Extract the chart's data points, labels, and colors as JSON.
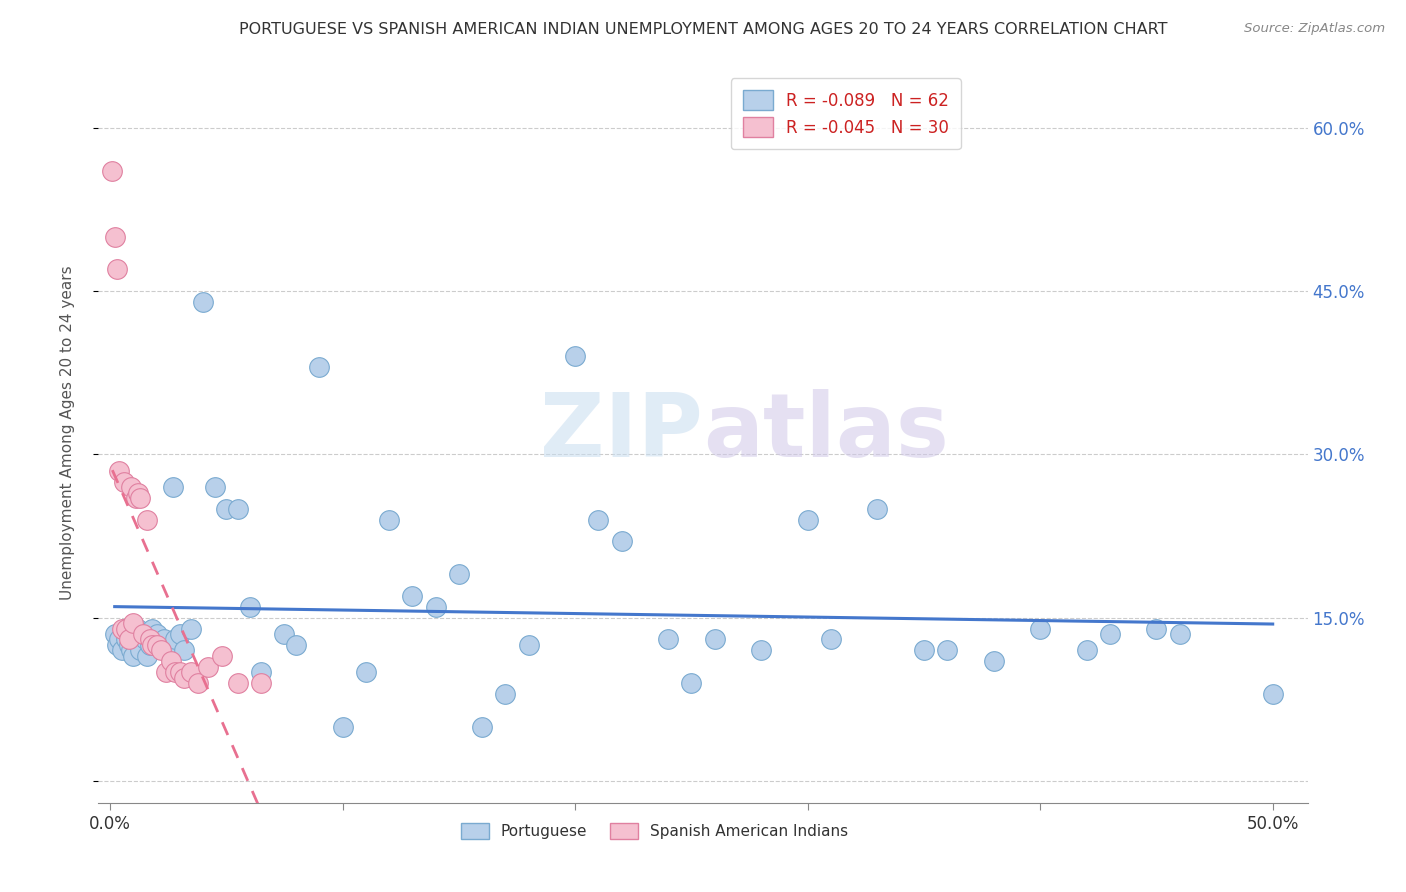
{
  "title": "PORTUGUESE VS SPANISH AMERICAN INDIAN UNEMPLOYMENT AMONG AGES 20 TO 24 YEARS CORRELATION CHART",
  "source": "Source: ZipAtlas.com",
  "ylabel": "Unemployment Among Ages 20 to 24 years",
  "xlim": [
    -0.005,
    0.515
  ],
  "ylim": [
    -0.02,
    0.66
  ],
  "xtick_positions": [
    0.0,
    0.1,
    0.2,
    0.3,
    0.4,
    0.5
  ],
  "xtick_labels_show": [
    "0.0%",
    "",
    "",
    "",
    "",
    "50.0%"
  ],
  "yticks_right": [
    0.0,
    0.15,
    0.3,
    0.45,
    0.6
  ],
  "yticklabels_right": [
    "",
    "15.0%",
    "30.0%",
    "45.0%",
    "60.0%"
  ],
  "portuguese_R": -0.089,
  "portuguese_N": 62,
  "spanish_R": -0.045,
  "spanish_N": 30,
  "portuguese_color": "#b8d0ea",
  "portuguese_edge": "#7aaad0",
  "spanish_color": "#f5c0d0",
  "spanish_edge": "#e080a0",
  "trendline_portuguese_color": "#4477cc",
  "trendline_spanish_color": "#e87090",
  "portuguese_x": [
    0.002,
    0.003,
    0.004,
    0.005,
    0.006,
    0.007,
    0.008,
    0.009,
    0.01,
    0.011,
    0.012,
    0.013,
    0.015,
    0.016,
    0.017,
    0.018,
    0.02,
    0.022,
    0.023,
    0.025,
    0.027,
    0.028,
    0.03,
    0.032,
    0.035,
    0.04,
    0.045,
    0.05,
    0.055,
    0.06,
    0.065,
    0.075,
    0.08,
    0.09,
    0.1,
    0.11,
    0.12,
    0.13,
    0.14,
    0.15,
    0.16,
    0.17,
    0.18,
    0.2,
    0.21,
    0.22,
    0.24,
    0.25,
    0.26,
    0.28,
    0.3,
    0.31,
    0.33,
    0.35,
    0.36,
    0.38,
    0.4,
    0.42,
    0.43,
    0.45,
    0.46,
    0.5
  ],
  "portuguese_y": [
    0.135,
    0.125,
    0.13,
    0.12,
    0.14,
    0.13,
    0.125,
    0.12,
    0.115,
    0.13,
    0.14,
    0.12,
    0.13,
    0.115,
    0.125,
    0.14,
    0.135,
    0.125,
    0.13,
    0.12,
    0.27,
    0.13,
    0.135,
    0.12,
    0.14,
    0.44,
    0.27,
    0.25,
    0.25,
    0.16,
    0.1,
    0.135,
    0.125,
    0.38,
    0.05,
    0.1,
    0.24,
    0.17,
    0.16,
    0.19,
    0.05,
    0.08,
    0.125,
    0.39,
    0.24,
    0.22,
    0.13,
    0.09,
    0.13,
    0.12,
    0.24,
    0.13,
    0.25,
    0.12,
    0.12,
    0.11,
    0.14,
    0.12,
    0.135,
    0.14,
    0.135,
    0.08
  ],
  "spanish_x": [
    0.001,
    0.002,
    0.003,
    0.004,
    0.005,
    0.006,
    0.007,
    0.008,
    0.009,
    0.01,
    0.011,
    0.012,
    0.013,
    0.014,
    0.016,
    0.017,
    0.018,
    0.02,
    0.022,
    0.024,
    0.026,
    0.028,
    0.03,
    0.032,
    0.035,
    0.038,
    0.042,
    0.048,
    0.055,
    0.065
  ],
  "spanish_y": [
    0.56,
    0.5,
    0.47,
    0.285,
    0.14,
    0.275,
    0.14,
    0.13,
    0.27,
    0.145,
    0.26,
    0.265,
    0.26,
    0.135,
    0.24,
    0.13,
    0.125,
    0.125,
    0.12,
    0.1,
    0.11,
    0.1,
    0.1,
    0.095,
    0.1,
    0.09,
    0.105,
    0.115,
    0.09,
    0.09
  ],
  "watermark_zip": "ZIP",
  "watermark_atlas": "atlas",
  "background_color": "#ffffff",
  "grid_color": "#cccccc",
  "legend_R_color": "#cc2222",
  "legend_N_color": "#3366cc"
}
